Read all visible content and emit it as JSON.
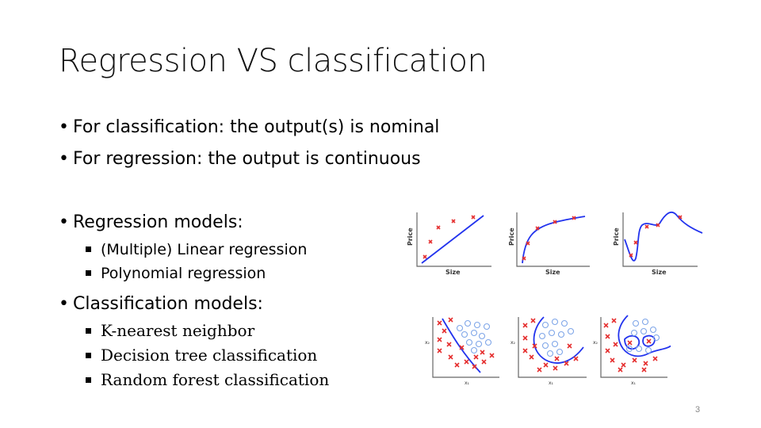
{
  "slide": {
    "title": "Regression VS classification",
    "bullets": [
      "For classification: the output(s) is nominal",
      "For regression: the output is continuous"
    ],
    "regression_heading": "Regression models:",
    "regression_items": [
      "(Multiple) Linear regression",
      "Polynomial regression"
    ],
    "classification_heading": "Classification models:",
    "classification_items": [
      "K-nearest neighbor",
      "Decision tree classification",
      "Random forest classification"
    ],
    "page_number": "3"
  },
  "figures": {
    "regression_plots": [
      {
        "ylabel": "Price",
        "xlabel": "Size"
      },
      {
        "ylabel": "Price",
        "xlabel": "Size"
      },
      {
        "ylabel": "Price",
        "xlabel": "Size"
      }
    ],
    "classification_plots": [
      {
        "ylabel": "x₂",
        "xlabel": "x₁"
      },
      {
        "ylabel": "x₂",
        "xlabel": "x₁"
      },
      {
        "ylabel": "x₂",
        "xlabel": "x₁"
      }
    ]
  },
  "colors": {
    "curve": "#2233ee",
    "cross": "#e53030",
    "circle": "#7fa6e8"
  }
}
